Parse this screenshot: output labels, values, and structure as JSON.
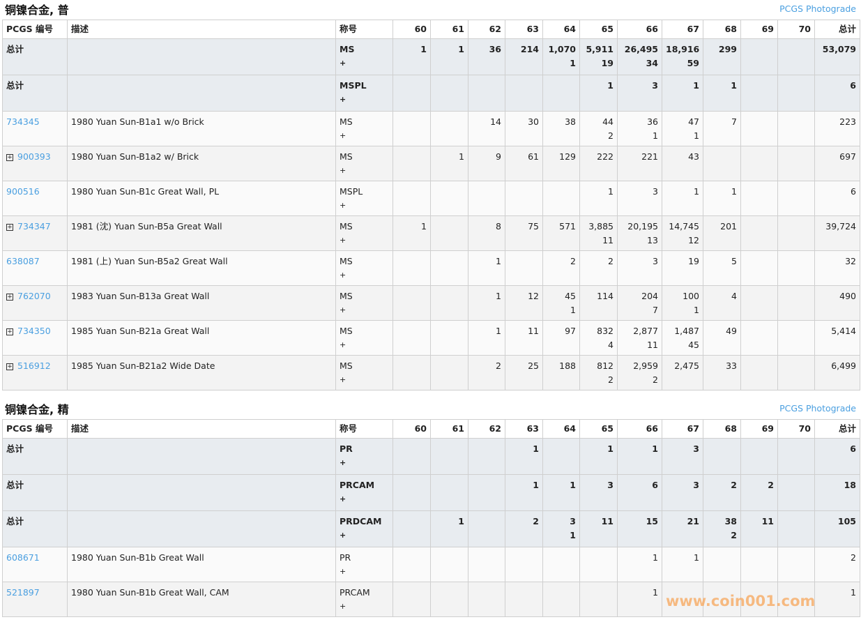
{
  "columns": [
    "PCGS 编号",
    "描述",
    "称号",
    "60",
    "61",
    "62",
    "63",
    "64",
    "65",
    "66",
    "67",
    "68",
    "69",
    "70",
    "总计"
  ],
  "sections": [
    {
      "title": "铜镍合金, 普",
      "photograde_link": "PCGS Photograde",
      "rows": [
        {
          "type": "total",
          "id": "总计",
          "desc": "",
          "designation": "MS",
          "plus": "+",
          "grades": [
            [
              "1",
              ""
            ],
            [
              "1",
              ""
            ],
            [
              "36",
              ""
            ],
            [
              "214",
              ""
            ],
            [
              "1,070",
              "1"
            ],
            [
              "5,911",
              "19"
            ],
            [
              "26,495",
              "34"
            ],
            [
              "18,916",
              "59"
            ],
            [
              "299",
              ""
            ],
            [
              "",
              ""
            ],
            [
              "",
              ""
            ]
          ],
          "total": "53,079"
        },
        {
          "type": "total",
          "id": "总计",
          "desc": "",
          "designation": "MSPL",
          "plus": "+",
          "grades": [
            [
              "",
              ""
            ],
            [
              "",
              ""
            ],
            [
              "",
              ""
            ],
            [
              "",
              ""
            ],
            [
              "",
              ""
            ],
            [
              "1",
              ""
            ],
            [
              "3",
              ""
            ],
            [
              "1",
              ""
            ],
            [
              "1",
              ""
            ],
            [
              "",
              ""
            ],
            [
              "",
              ""
            ]
          ],
          "total": "6"
        },
        {
          "type": "data",
          "expand": false,
          "id": "734345",
          "desc": "1980 Yuan Sun-B1a1 w/o Brick",
          "designation": "MS",
          "plus": "+",
          "grades": [
            [
              "",
              ""
            ],
            [
              "",
              ""
            ],
            [
              "14",
              ""
            ],
            [
              "30",
              ""
            ],
            [
              "38",
              ""
            ],
            [
              "44",
              "2"
            ],
            [
              "36",
              "1"
            ],
            [
              "47",
              "1"
            ],
            [
              "7",
              ""
            ],
            [
              "",
              ""
            ],
            [
              "",
              ""
            ]
          ],
          "total": "223"
        },
        {
          "type": "data",
          "expand": true,
          "id": "900393",
          "desc": "1980 Yuan Sun-B1a2 w/ Brick",
          "designation": "MS",
          "plus": "+",
          "grades": [
            [
              "",
              ""
            ],
            [
              "1",
              ""
            ],
            [
              "9",
              ""
            ],
            [
              "61",
              ""
            ],
            [
              "129",
              ""
            ],
            [
              "222",
              ""
            ],
            [
              "221",
              ""
            ],
            [
              "43",
              ""
            ],
            [
              "",
              ""
            ],
            [
              "",
              ""
            ],
            [
              "",
              ""
            ]
          ],
          "total": "697"
        },
        {
          "type": "data",
          "expand": false,
          "id": "900516",
          "desc": "1980 Yuan Sun-B1c Great Wall, PL",
          "designation": "MSPL",
          "plus": "+",
          "grades": [
            [
              "",
              ""
            ],
            [
              "",
              ""
            ],
            [
              "",
              ""
            ],
            [
              "",
              ""
            ],
            [
              "",
              ""
            ],
            [
              "1",
              ""
            ],
            [
              "3",
              ""
            ],
            [
              "1",
              ""
            ],
            [
              "1",
              ""
            ],
            [
              "",
              ""
            ],
            [
              "",
              ""
            ]
          ],
          "total": "6"
        },
        {
          "type": "data",
          "expand": true,
          "id": "734347",
          "desc": "1981 (沈) Yuan Sun-B5a Great Wall",
          "designation": "MS",
          "plus": "+",
          "grades": [
            [
              "1",
              ""
            ],
            [
              "",
              ""
            ],
            [
              "8",
              ""
            ],
            [
              "75",
              ""
            ],
            [
              "571",
              ""
            ],
            [
              "3,885",
              "11"
            ],
            [
              "20,195",
              "13"
            ],
            [
              "14,745",
              "12"
            ],
            [
              "201",
              ""
            ],
            [
              "",
              ""
            ],
            [
              "",
              ""
            ]
          ],
          "total": "39,724"
        },
        {
          "type": "data",
          "expand": false,
          "id": "638087",
          "desc": "1981 (上) Yuan Sun-B5a2 Great Wall",
          "designation": "MS",
          "plus": "+",
          "grades": [
            [
              "",
              ""
            ],
            [
              "",
              ""
            ],
            [
              "1",
              ""
            ],
            [
              "",
              ""
            ],
            [
              "2",
              ""
            ],
            [
              "2",
              ""
            ],
            [
              "3",
              ""
            ],
            [
              "19",
              ""
            ],
            [
              "5",
              ""
            ],
            [
              "",
              ""
            ],
            [
              "",
              ""
            ]
          ],
          "total": "32"
        },
        {
          "type": "data",
          "expand": true,
          "id": "762070",
          "desc": "1983 Yuan Sun-B13a Great Wall",
          "designation": "MS",
          "plus": "+",
          "grades": [
            [
              "",
              ""
            ],
            [
              "",
              ""
            ],
            [
              "1",
              ""
            ],
            [
              "12",
              ""
            ],
            [
              "45",
              "1"
            ],
            [
              "114",
              ""
            ],
            [
              "204",
              "7"
            ],
            [
              "100",
              "1"
            ],
            [
              "4",
              ""
            ],
            [
              "",
              ""
            ],
            [
              "",
              ""
            ]
          ],
          "total": "490"
        },
        {
          "type": "data",
          "expand": true,
          "id": "734350",
          "desc": "1985 Yuan Sun-B21a Great Wall",
          "designation": "MS",
          "plus": "+",
          "grades": [
            [
              "",
              ""
            ],
            [
              "",
              ""
            ],
            [
              "1",
              ""
            ],
            [
              "11",
              ""
            ],
            [
              "97",
              ""
            ],
            [
              "832",
              "4"
            ],
            [
              "2,877",
              "11"
            ],
            [
              "1,487",
              "45"
            ],
            [
              "49",
              ""
            ],
            [
              "",
              ""
            ],
            [
              "",
              ""
            ]
          ],
          "total": "5,414"
        },
        {
          "type": "data",
          "expand": true,
          "id": "516912",
          "desc": "1985 Yuan Sun-B21a2 Wide Date",
          "designation": "MS",
          "plus": "+",
          "grades": [
            [
              "",
              ""
            ],
            [
              "",
              ""
            ],
            [
              "2",
              ""
            ],
            [
              "25",
              ""
            ],
            [
              "188",
              ""
            ],
            [
              "812",
              "2"
            ],
            [
              "2,959",
              "2"
            ],
            [
              "2,475",
              ""
            ],
            [
              "33",
              ""
            ],
            [
              "",
              ""
            ],
            [
              "",
              ""
            ]
          ],
          "total": "6,499"
        }
      ]
    },
    {
      "title": "铜镍合金, 精",
      "photograde_link": "PCGS Photograde",
      "rows": [
        {
          "type": "total",
          "id": "总计",
          "desc": "",
          "designation": "PR",
          "plus": "+",
          "grades": [
            [
              "",
              ""
            ],
            [
              "",
              ""
            ],
            [
              "",
              ""
            ],
            [
              "1",
              ""
            ],
            [
              "",
              ""
            ],
            [
              "1",
              ""
            ],
            [
              "1",
              ""
            ],
            [
              "3",
              ""
            ],
            [
              "",
              ""
            ],
            [
              "",
              ""
            ],
            [
              "",
              ""
            ]
          ],
          "total": "6"
        },
        {
          "type": "total",
          "id": "总计",
          "desc": "",
          "designation": "PRCAM",
          "plus": "+",
          "grades": [
            [
              "",
              ""
            ],
            [
              "",
              ""
            ],
            [
              "",
              ""
            ],
            [
              "1",
              ""
            ],
            [
              "1",
              ""
            ],
            [
              "3",
              ""
            ],
            [
              "6",
              ""
            ],
            [
              "3",
              ""
            ],
            [
              "2",
              ""
            ],
            [
              "2",
              ""
            ],
            [
              "",
              ""
            ]
          ],
          "total": "18"
        },
        {
          "type": "total",
          "id": "总计",
          "desc": "",
          "designation": "PRDCAM",
          "plus": "+",
          "grades": [
            [
              "",
              ""
            ],
            [
              "1",
              ""
            ],
            [
              "",
              ""
            ],
            [
              "2",
              ""
            ],
            [
              "3",
              "1"
            ],
            [
              "11",
              ""
            ],
            [
              "15",
              ""
            ],
            [
              "21",
              ""
            ],
            [
              "38",
              "2"
            ],
            [
              "11",
              ""
            ],
            [
              "",
              ""
            ]
          ],
          "total": "105"
        },
        {
          "type": "data",
          "expand": false,
          "id": "608671",
          "desc": "1980 Yuan Sun-B1b Great Wall",
          "designation": "PR",
          "plus": "+",
          "grades": [
            [
              "",
              ""
            ],
            [
              "",
              ""
            ],
            [
              "",
              ""
            ],
            [
              "",
              ""
            ],
            [
              "",
              ""
            ],
            [
              "",
              ""
            ],
            [
              "1",
              ""
            ],
            [
              "1",
              ""
            ],
            [
              "",
              ""
            ],
            [
              "",
              ""
            ],
            [
              "",
              ""
            ]
          ],
          "total": "2"
        },
        {
          "type": "data",
          "expand": false,
          "id": "521897",
          "desc": "1980 Yuan Sun-B1b Great Wall, CAM",
          "designation": "PRCAM",
          "plus": "+",
          "grades": [
            [
              "",
              ""
            ],
            [
              "",
              ""
            ],
            [
              "",
              ""
            ],
            [
              "",
              ""
            ],
            [
              "",
              ""
            ],
            [
              "",
              ""
            ],
            [
              "1",
              ""
            ],
            [
              "",
              ""
            ],
            [
              "",
              ""
            ],
            [
              "",
              ""
            ],
            [
              "",
              ""
            ]
          ],
          "total": "1"
        }
      ]
    }
  ],
  "watermark": "www.coin001.com",
  "colors": {
    "link": "#4a9fe0",
    "total_row_bg": "#e8ecf0",
    "watermark": "#f7a65a"
  }
}
